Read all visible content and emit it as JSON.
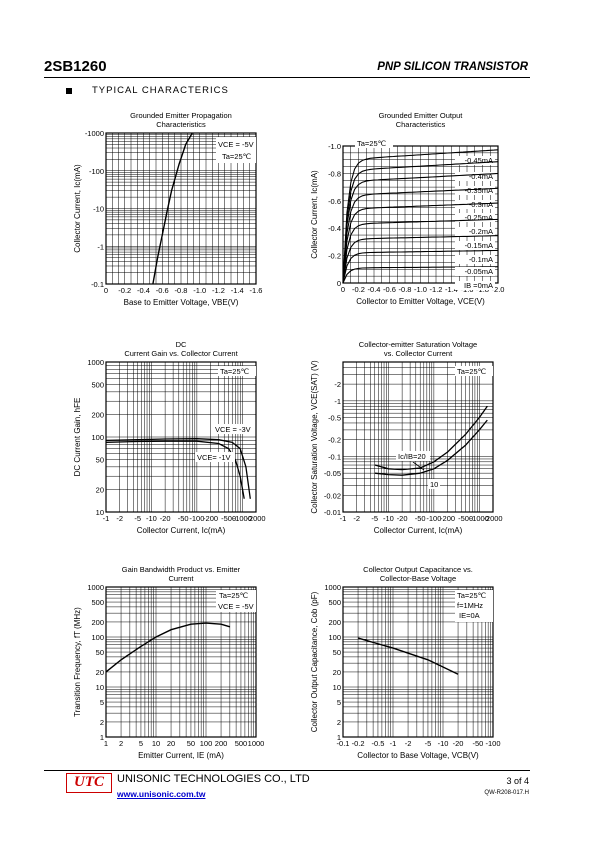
{
  "header": {
    "part": "2SB1260",
    "type": "PNP SILICON TRANSISTOR"
  },
  "section": {
    "title": "TYPICAL CHARACTERICS"
  },
  "footer": {
    "logo": "UTC",
    "company": "UNISONIC TECHNOLOGIES CO., LTD",
    "url": "www.unisonic.com.tw",
    "page": "3 of 4",
    "doc": "QW-R208-017.H"
  },
  "chart_data": [
    {
      "type": "line",
      "title": "Grounded Emitter Propagation Characteristics",
      "xlabel": "Base to Emitter Voltage, VBE(V)",
      "ylabel": "Collector Current, Ic(mA)",
      "xscale": "linear",
      "yscale": "log",
      "xlim": [
        0,
        -1.6
      ],
      "ylim": [
        -0.1,
        -1000
      ],
      "xticks": [
        "0",
        "-0.2",
        "-0.4",
        "-0.6",
        "-0.8",
        "-1.0",
        "-1.2",
        "-1.4",
        "-1.6"
      ],
      "yticks": [
        "-0.1",
        "-1",
        "-10",
        "-100",
        "-1000"
      ],
      "annotations": [
        "VCE = -5V",
        "Ta=25℃"
      ],
      "series": [
        {
          "x": [
            -0.5,
            -0.55,
            -0.6,
            -0.65,
            -0.7,
            -0.78,
            -0.85,
            -0.92
          ],
          "y": [
            -0.1,
            -0.5,
            -2,
            -8,
            -30,
            -150,
            -500,
            -1000
          ]
        }
      ]
    },
    {
      "type": "line",
      "title": "Grounded Emitter Output Characteristics",
      "xlabel": "Collector to Emitter Voltage, VCE(V)",
      "ylabel": "Collector Current, Ic(mA)",
      "xscale": "linear",
      "yscale": "linear",
      "xlim": [
        0,
        -2.0
      ],
      "ylim": [
        0,
        -1.0
      ],
      "xticks": [
        "0",
        "-0.2",
        "-0.4",
        "-0.6",
        "-0.8",
        "-1.0",
        "-1.2",
        "-1.4",
        "-1.6",
        "-1.8",
        "-2.0"
      ],
      "yticks": [
        "0",
        "-0.2",
        "-0.4",
        "-0.6",
        "-0.8",
        "-1.0"
      ],
      "annotations": [
        "Ta=25℃"
      ],
      "series": [
        {
          "name": "-0.45mA",
          "sat": -0.9
        },
        {
          "name": "-0.4mA",
          "sat": -0.82
        },
        {
          "name": "-0.35mA",
          "sat": -0.74
        },
        {
          "name": "-0.3mA",
          "sat": -0.64
        },
        {
          "name": "-0.25mA",
          "sat": -0.54
        },
        {
          "name": "-0.2mA",
          "sat": -0.43
        },
        {
          "name": "-0.15mA",
          "sat": -0.32
        },
        {
          "name": "-0.1mA",
          "sat": -0.22
        },
        {
          "name": "-0.05mA",
          "sat": -0.11
        },
        {
          "name": "IB =0mA",
          "sat": 0
        }
      ]
    },
    {
      "type": "line",
      "title": "DC Current Gain vs. Collector Current",
      "xlabel": "Collector Current, Ic(mA)",
      "ylabel": "DC Current Gain, hFE",
      "xscale": "log",
      "yscale": "log",
      "xlim": [
        -1,
        -2000
      ],
      "ylim": [
        10,
        1000
      ],
      "xticks": [
        "-1",
        "-2",
        "-5",
        "-10",
        "-20",
        "-50",
        "-100",
        "-200",
        "-500",
        "-1000",
        "-2000"
      ],
      "yticks": [
        "10",
        "20",
        "50",
        "100",
        "200",
        "500",
        "1000"
      ],
      "annotations": [
        "Ta=25℃"
      ],
      "series": [
        {
          "name": "VCE = -3V",
          "x": [
            -1,
            -5,
            -20,
            -100,
            -300,
            -600,
            -900,
            -1200,
            -1500
          ],
          "y": [
            90,
            92,
            94,
            95,
            92,
            85,
            70,
            40,
            15
          ]
        },
        {
          "name": "VCE= -1V",
          "x": [
            -1,
            -5,
            -20,
            -100,
            -300,
            -500,
            -700,
            -900,
            -1100
          ],
          "y": [
            85,
            87,
            88,
            88,
            82,
            70,
            50,
            30,
            15
          ]
        }
      ]
    },
    {
      "type": "line",
      "title": "Collector-emitter Saturation Voltage vs. Collector Current",
      "xlabel": "Collector Current, Ic(mA)",
      "ylabel": "Collector  Saturation Voltage, VCE(SAT) (V)",
      "xscale": "log",
      "yscale": "log",
      "xlim": [
        -1,
        -2000
      ],
      "ylim": [
        -0.01,
        -5
      ],
      "xticks": [
        "-1",
        "-2",
        "-5",
        "-10",
        "-20",
        "-50",
        "-100",
        "-200",
        "-500",
        "-1000",
        "-2000"
      ],
      "yticks": [
        "-0.01",
        "-0.02",
        "-0.05",
        "-0.1",
        "-0.2",
        "-0.5",
        "-1",
        "-2"
      ],
      "annotations": [
        "Ta=25℃"
      ],
      "series": [
        {
          "name": "Ic/IB=20",
          "x": [
            -5,
            -10,
            -20,
            -50,
            -100,
            -200,
            -500,
            -1000,
            -1500
          ],
          "y": [
            -0.07,
            -0.06,
            -0.058,
            -0.062,
            -0.08,
            -0.12,
            -0.25,
            -0.5,
            -0.8
          ]
        },
        {
          "name": "10",
          "x": [
            -5,
            -10,
            -20,
            -50,
            -100,
            -200,
            -500,
            -1000,
            -1500
          ],
          "y": [
            -0.05,
            -0.047,
            -0.046,
            -0.05,
            -0.06,
            -0.085,
            -0.16,
            -0.3,
            -0.45
          ]
        }
      ]
    },
    {
      "type": "line",
      "title": "Gain Bandwidth Product vs. Emitter Current",
      "xlabel": "Emitter Current, IE (mA)",
      "ylabel": "Transition Frequency, fT (MHz)",
      "xscale": "log",
      "yscale": "log",
      "xlim": [
        1,
        1000
      ],
      "ylim": [
        1,
        1000
      ],
      "xticks": [
        "1",
        "2",
        "5",
        "10",
        "20",
        "50",
        "100",
        "200",
        "500",
        "1000"
      ],
      "yticks": [
        "1",
        "2",
        "5",
        "10",
        "20",
        "50",
        "100",
        "200",
        "500",
        "1000"
      ],
      "annotations": [
        "Ta=25℃",
        "VCE = -5V"
      ],
      "series": [
        {
          "x": [
            1,
            2,
            5,
            10,
            20,
            50,
            100,
            200,
            300
          ],
          "y": [
            20,
            35,
            65,
            100,
            140,
            180,
            190,
            180,
            160
          ]
        }
      ]
    },
    {
      "type": "line",
      "title": "Collector Output Capacitance  vs. Collector-Base Voltage",
      "xlabel": "Collector to Base Voltage, VCB(V)",
      "ylabel": "Collector Output Capacitance, Cob (pF)",
      "xscale": "log",
      "yscale": "log",
      "xlim": [
        -0.1,
        -100
      ],
      "ylim": [
        1,
        1000
      ],
      "xticks": [
        "-0.1",
        "-0.2",
        "-0.5",
        "-1",
        "-2",
        "-5",
        "-10",
        "-20",
        "-50",
        "-100"
      ],
      "yticks": [
        "1",
        "2",
        "5",
        "10",
        "20",
        "50",
        "100",
        "200",
        "500",
        "1000"
      ],
      "annotations": [
        "Ta=25℃",
        "f=1MHz",
        "IE=0A"
      ],
      "series": [
        {
          "x": [
            -0.2,
            -1,
            -5,
            -20
          ],
          "y": [
            95,
            60,
            35,
            18
          ]
        }
      ]
    }
  ]
}
